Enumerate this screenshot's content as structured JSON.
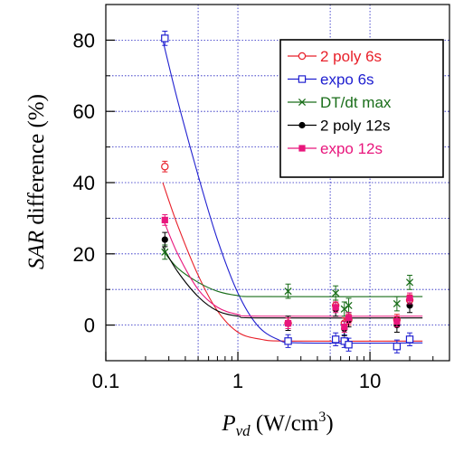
{
  "chart_data": {
    "type": "scatter",
    "x_scale": "log",
    "xlim": [
      0.1,
      40
    ],
    "ylim": [
      -10,
      90
    ],
    "grid": true,
    "legend_position": "top-right",
    "ylabel": {
      "italic": "SAR",
      "rest": "difference (%)"
    },
    "xlabel": {
      "italic": "P",
      "sub": "vd",
      "rest": " (W/cm",
      "sup": "3",
      "close": ")"
    },
    "x_ticks": [
      {
        "value": 0.1,
        "label": "0.1"
      },
      {
        "value": 1,
        "label": "1"
      },
      {
        "value": 10,
        "label": "10"
      }
    ],
    "y_ticks": [
      {
        "value": 0,
        "label": "0"
      },
      {
        "value": 20,
        "label": "20"
      },
      {
        "value": 40,
        "label": "40"
      },
      {
        "value": 60,
        "label": "60"
      },
      {
        "value": 80,
        "label": "80"
      }
    ],
    "series": [
      {
        "name": "2 poly 6s",
        "color": "#e8202a",
        "marker": "open-circle",
        "points": [
          {
            "x": 0.28,
            "y": 44.5,
            "err": 1.5
          },
          {
            "x": 2.4,
            "y": 0.5,
            "err": 1.5
          },
          {
            "x": 5.5,
            "y": 5.5,
            "err": 1.5
          },
          {
            "x": 6.4,
            "y": 0.5,
            "err": 1.5
          },
          {
            "x": 6.9,
            "y": 1.5,
            "err": 1.5
          },
          {
            "x": 16,
            "y": 1.5,
            "err": 1.5
          },
          {
            "x": 20,
            "y": 7.0,
            "err": 1.5
          }
        ],
        "fit": [
          [
            0.27,
            40
          ],
          [
            0.35,
            28
          ],
          [
            0.5,
            14
          ],
          [
            0.7,
            4
          ],
          [
            1.0,
            -2
          ],
          [
            1.5,
            -4
          ],
          [
            2.5,
            -4.5
          ],
          [
            25,
            -4.5
          ]
        ]
      },
      {
        "name": "expo 6s",
        "color": "#2020d0",
        "marker": "open-square",
        "points": [
          {
            "x": 0.28,
            "y": 80.5,
            "err": 2
          },
          {
            "x": 2.4,
            "y": -4.5,
            "err": 1.8
          },
          {
            "x": 5.5,
            "y": -4.0,
            "err": 1.8
          },
          {
            "x": 6.4,
            "y": -4.5,
            "err": 1.8
          },
          {
            "x": 6.9,
            "y": -5.5,
            "err": 1.8
          },
          {
            "x": 16,
            "y": -6.0,
            "err": 1.8
          },
          {
            "x": 20,
            "y": -4.0,
            "err": 1.8
          }
        ],
        "fit": [
          [
            0.27,
            80
          ],
          [
            0.35,
            63
          ],
          [
            0.5,
            42
          ],
          [
            0.7,
            24
          ],
          [
            1.0,
            9
          ],
          [
            1.4,
            0
          ],
          [
            2.0,
            -4
          ],
          [
            3.0,
            -5
          ],
          [
            25,
            -5
          ]
        ]
      },
      {
        "name": "DT/dt max",
        "color": "#1a6e1a",
        "marker": "cross",
        "points": [
          {
            "x": 0.28,
            "y": 20.5,
            "err": 2
          },
          {
            "x": 2.4,
            "y": 9.5,
            "err": 2
          },
          {
            "x": 5.5,
            "y": 9.0,
            "err": 2
          },
          {
            "x": 6.4,
            "y": 4.5,
            "err": 2
          },
          {
            "x": 6.9,
            "y": 5.5,
            "err": 2
          },
          {
            "x": 16,
            "y": 6.0,
            "err": 2
          },
          {
            "x": 20,
            "y": 12.0,
            "err": 2
          }
        ],
        "fit": [
          [
            0.27,
            21
          ],
          [
            0.35,
            16
          ],
          [
            0.5,
            12
          ],
          [
            0.7,
            9.5
          ],
          [
            1.0,
            8.3
          ],
          [
            1.5,
            8
          ],
          [
            25,
            8
          ]
        ]
      },
      {
        "name": "2 poly 12s",
        "color": "#000000",
        "marker": "filled-circle",
        "points": [
          {
            "x": 0.28,
            "y": 24.0,
            "err": 2
          },
          {
            "x": 2.4,
            "y": 0.5,
            "err": 2
          },
          {
            "x": 5.5,
            "y": 4.5,
            "err": 2
          },
          {
            "x": 6.4,
            "y": -1.0,
            "err": 2
          },
          {
            "x": 6.9,
            "y": 1.5,
            "err": 2
          },
          {
            "x": 16,
            "y": 0.0,
            "err": 2
          },
          {
            "x": 20,
            "y": 5.5,
            "err": 2
          }
        ],
        "fit": [
          [
            0.27,
            22
          ],
          [
            0.35,
            15
          ],
          [
            0.5,
            8
          ],
          [
            0.7,
            4
          ],
          [
            1.0,
            2.5
          ],
          [
            1.5,
            2
          ],
          [
            25,
            2
          ]
        ]
      },
      {
        "name": "expo 12s",
        "color": "#e8167c",
        "marker": "filled-square",
        "points": [
          {
            "x": 0.28,
            "y": 29.5,
            "err": 1.5
          },
          {
            "x": 2.4,
            "y": 0.5,
            "err": 1.5
          },
          {
            "x": 5.5,
            "y": 5.0,
            "err": 1.5
          },
          {
            "x": 6.4,
            "y": -0.5,
            "err": 1.5
          },
          {
            "x": 6.9,
            "y": 2.0,
            "err": 1.5
          },
          {
            "x": 16,
            "y": 1.0,
            "err": 1.5
          },
          {
            "x": 20,
            "y": 7.5,
            "err": 1.5
          }
        ],
        "fit": [
          [
            0.27,
            30
          ],
          [
            0.35,
            20
          ],
          [
            0.5,
            10
          ],
          [
            0.7,
            5
          ],
          [
            1.0,
            3
          ],
          [
            1.5,
            2.5
          ],
          [
            25,
            2.5
          ]
        ]
      }
    ]
  }
}
